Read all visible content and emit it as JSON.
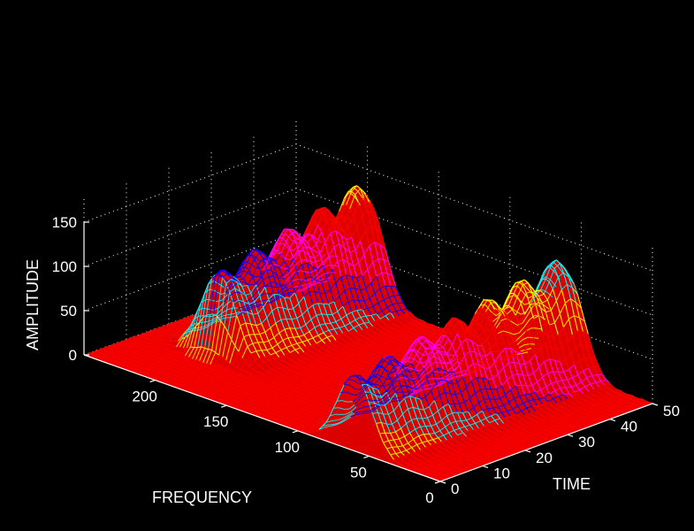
{
  "chart_data": {
    "type": "surface",
    "title": "",
    "xlabel": "FREQUENCY",
    "ylabel": "TIME",
    "zlabel": "AMPLITUDE",
    "xlim": [
      0,
      250
    ],
    "ylim": [
      0,
      50
    ],
    "zlim": [
      0,
      150
    ],
    "x_ticks": [
      "0",
      "50",
      "100",
      "150",
      "200"
    ],
    "y_ticks": [
      "0",
      "10",
      "20",
      "30",
      "40",
      "50"
    ],
    "z_ticks": [
      "0",
      "50",
      "100",
      "150"
    ],
    "grid": true,
    "colormap": [
      "#ff0000",
      "#ffff00",
      "#00ffff",
      "#0000ff",
      "#ff00ff"
    ],
    "peaks": [
      {
        "freq": 200,
        "time_start": 15,
        "time_end": 50,
        "amplitude_start": 95,
        "amplitude_end": 140
      },
      {
        "freq": 60,
        "time_start": 0,
        "time_end": 50,
        "amplitude_start": 85,
        "amplitude_end": 135
      }
    ]
  }
}
